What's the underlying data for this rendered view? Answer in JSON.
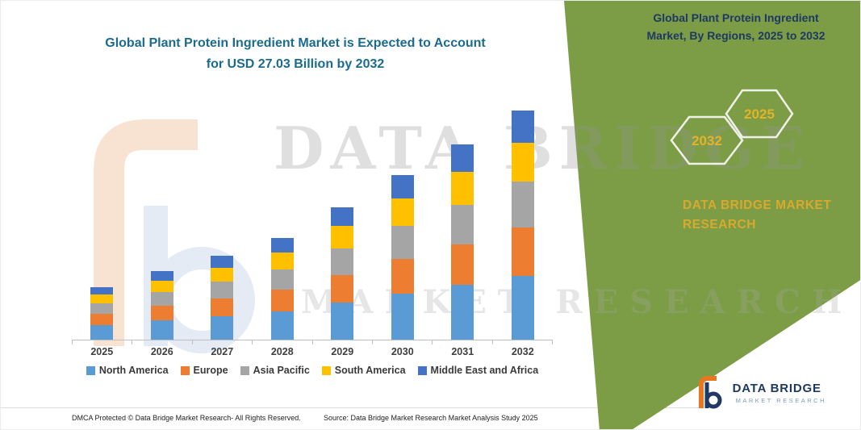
{
  "title": {
    "line1": "Global Plant Protein Ingredient Market is Expected to Account",
    "line2": "for USD 27.03 Billion by 2032"
  },
  "side_panel": {
    "title_line1": "Global Plant Protein Ingredient",
    "title_line2": "Market, By Regions, 2025 to 2032",
    "hexagon_back_year": "2032",
    "hexagon_front_year": "2025",
    "brand_line1": "DATA BRIDGE MARKET",
    "brand_line2": "RESEARCH",
    "panel_color": "#7C9D45",
    "accent_gold": "#E3B32A",
    "title_color": "#1F3864"
  },
  "watermark": {
    "line1": "DATA BRIDGE",
    "line2": "MARKET RESEARCH"
  },
  "chart_data": {
    "type": "bar",
    "stacked": true,
    "title": "Global Plant Protein Ingredient Market is Expected to Account for USD 27.03 Billion by 2032",
    "unit": "USD Billion",
    "categories": [
      "2025",
      "2026",
      "2027",
      "2028",
      "2029",
      "2030",
      "2031",
      "2032"
    ],
    "series": [
      {
        "name": "North America",
        "color": "#5B9BD5",
        "values": [
          1.74,
          2.27,
          2.77,
          3.36,
          4.37,
          5.43,
          6.44,
          7.57
        ]
      },
      {
        "name": "Europe",
        "color": "#ED7D31",
        "values": [
          1.3,
          1.7,
          2.08,
          2.52,
          3.28,
          4.07,
          4.83,
          5.68
        ]
      },
      {
        "name": "Asia Pacific",
        "color": "#A5A5A5",
        "values": [
          1.24,
          1.62,
          1.98,
          2.4,
          3.12,
          3.88,
          4.6,
          5.41
        ]
      },
      {
        "name": "South America",
        "color": "#FFC000",
        "values": [
          1.05,
          1.38,
          1.68,
          2.04,
          2.65,
          3.3,
          3.91,
          4.6
        ]
      },
      {
        "name": "Middle East and Africa",
        "color": "#4472C4",
        "values": [
          0.87,
          1.13,
          1.39,
          1.68,
          2.18,
          2.72,
          3.22,
          3.77
        ]
      }
    ],
    "year_totals": [
      6.2,
      8.1,
      9.9,
      12.0,
      15.6,
      19.4,
      23.0,
      27.03
    ],
    "ylim": [
      0,
      29.5
    ],
    "gridlines": false,
    "legend_position": "bottom"
  },
  "footer": {
    "dmca": "DMCA Protected © Data Bridge Market Research-  All Rights Reserved.",
    "source": "Source: Data Bridge Market Research  Market Analysis Study 2025"
  },
  "logo": {
    "name": "DATA BRIDGE",
    "subtitle": "MARKET RESEARCH"
  }
}
